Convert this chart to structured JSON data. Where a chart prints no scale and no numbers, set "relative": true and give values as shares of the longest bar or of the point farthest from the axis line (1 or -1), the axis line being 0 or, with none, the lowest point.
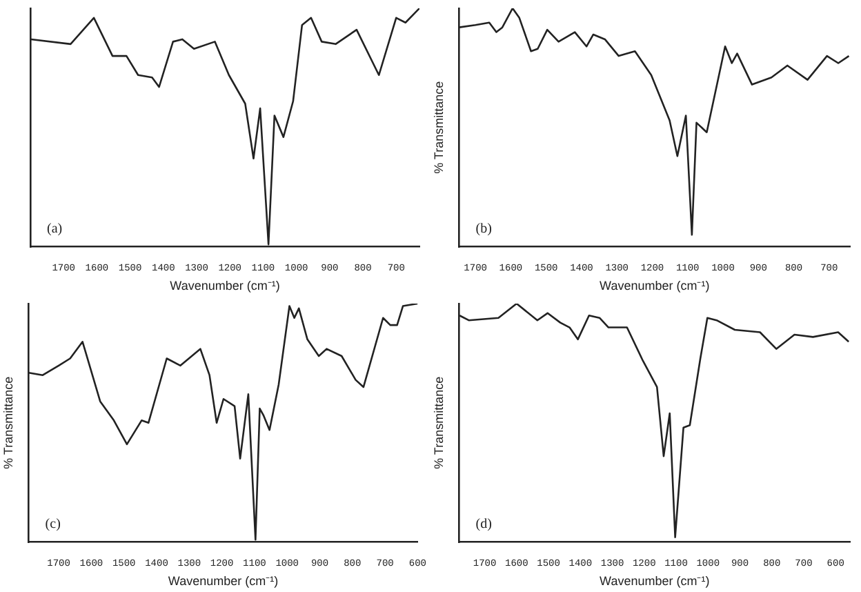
{
  "chart_data": [
    {
      "type": "line",
      "relative": true,
      "xlabel": "Wavenumber (cm⁻¹)",
      "annotations": [
        "(a)"
      ],
      "marker": "none",
      "line_style": "solid",
      "grid": false,
      "legend": false,
      "xlim": [
        1800,
        630
      ],
      "xticks": [
        1700,
        1600,
        1500,
        1400,
        1300,
        1200,
        1100,
        1000,
        900,
        800,
        700
      ],
      "series": [
        {
          "color": "#222222",
          "x": [
            1798,
            1679,
            1609,
            1553,
            1511,
            1476,
            1434,
            1413,
            1371,
            1343,
            1308,
            1245,
            1203,
            1154,
            1129,
            1109,
            1084,
            1066,
            1039,
            1010,
            983,
            956,
            924,
            882,
            819,
            752,
            700,
            672,
            630
          ],
          "values": [
            0.87,
            0.85,
            0.96,
            0.8,
            0.8,
            0.72,
            0.71,
            0.67,
            0.86,
            0.87,
            0.83,
            0.86,
            0.72,
            0.6,
            0.37,
            0.58,
            0.01,
            0.55,
            0.46,
            0.61,
            0.93,
            0.96,
            0.86,
            0.85,
            0.91,
            0.72,
            0.96,
            0.94,
            1
          ]
        }
      ]
    },
    {
      "type": "line",
      "relative": true,
      "xlabel": "Wavenumber (cm⁻¹)",
      "ylabel": "% Transmittance",
      "annotations": [
        "(b)"
      ],
      "marker": "none",
      "line_style": "solid",
      "grid": false,
      "legend": false,
      "xlim": [
        1746,
        641
      ],
      "xticks": [
        1700,
        1600,
        1500,
        1400,
        1300,
        1200,
        1100,
        1000,
        900,
        800,
        700
      ],
      "series": [
        {
          "color": "#222222",
          "x": [
            1746,
            1700,
            1661,
            1641,
            1624,
            1595,
            1576,
            1543,
            1524,
            1497,
            1465,
            1419,
            1386,
            1367,
            1334,
            1295,
            1249,
            1203,
            1151,
            1129,
            1105,
            1088,
            1075,
            1046,
            994,
            975,
            960,
            918,
            863,
            818,
            761,
            706,
            674,
            644
          ],
          "values": [
            0.92,
            0.93,
            0.94,
            0.9,
            0.92,
            1,
            0.96,
            0.82,
            0.83,
            0.91,
            0.86,
            0.9,
            0.84,
            0.89,
            0.87,
            0.8,
            0.82,
            0.72,
            0.53,
            0.38,
            0.55,
            0.05,
            0.52,
            0.48,
            0.84,
            0.77,
            0.81,
            0.68,
            0.71,
            0.76,
            0.7,
            0.8,
            0.77,
            0.8
          ]
        }
      ]
    },
    {
      "type": "line",
      "relative": true,
      "xlabel": "Wavenumber (cm⁻¹)",
      "ylabel": "% Transmittance",
      "annotations": [
        "(c)"
      ],
      "marker": "none",
      "line_style": "solid",
      "grid": false,
      "legend": false,
      "xlim": [
        1792,
        600
      ],
      "xticks": [
        1700,
        1600,
        1500,
        1400,
        1300,
        1200,
        1100,
        1000,
        900,
        800,
        700,
        600
      ],
      "series": [
        {
          "color": "#222222",
          "x": [
            1792,
            1749,
            1700,
            1665,
            1627,
            1573,
            1531,
            1491,
            1446,
            1425,
            1369,
            1327,
            1266,
            1238,
            1216,
            1195,
            1161,
            1144,
            1119,
            1097,
            1084,
            1072,
            1054,
            1026,
            993,
            978,
            964,
            938,
            903,
            879,
            833,
            790,
            766,
            706,
            684,
            663,
            645,
            600
          ],
          "values": [
            0.71,
            0.7,
            0.74,
            0.77,
            0.84,
            0.59,
            0.51,
            0.41,
            0.51,
            0.5,
            0.77,
            0.74,
            0.81,
            0.7,
            0.5,
            0.6,
            0.57,
            0.35,
            0.62,
            0.01,
            0.56,
            0.53,
            0.47,
            0.66,
            0.99,
            0.94,
            0.98,
            0.85,
            0.78,
            0.81,
            0.78,
            0.68,
            0.65,
            0.94,
            0.91,
            0.91,
            0.99,
            1
          ]
        }
      ]
    },
    {
      "type": "line",
      "relative": true,
      "xlabel": "Wavenumber (cm⁻¹)",
      "ylabel": "% Transmittance",
      "annotations": [
        "(d)"
      ],
      "marker": "none",
      "line_style": "solid",
      "grid": false,
      "legend": false,
      "xlim": [
        1780,
        555
      ],
      "xticks": [
        1700,
        1600,
        1500,
        1400,
        1300,
        1200,
        1100,
        1000,
        900,
        800,
        700,
        600
      ],
      "series": [
        {
          "color": "#222222",
          "x": [
            1779,
            1750,
            1657,
            1600,
            1535,
            1503,
            1463,
            1434,
            1408,
            1373,
            1340,
            1312,
            1254,
            1204,
            1160,
            1139,
            1120,
            1103,
            1077,
            1057,
            1024,
            1002,
            973,
            916,
            837,
            786,
            729,
            671,
            592,
            559
          ],
          "values": [
            0.95,
            0.93,
            0.94,
            1,
            0.93,
            0.96,
            0.92,
            0.9,
            0.85,
            0.95,
            0.94,
            0.9,
            0.9,
            0.76,
            0.65,
            0.36,
            0.54,
            0.02,
            0.48,
            0.49,
            0.77,
            0.94,
            0.93,
            0.89,
            0.88,
            0.81,
            0.87,
            0.86,
            0.88,
            0.84
          ]
        }
      ]
    }
  ]
}
